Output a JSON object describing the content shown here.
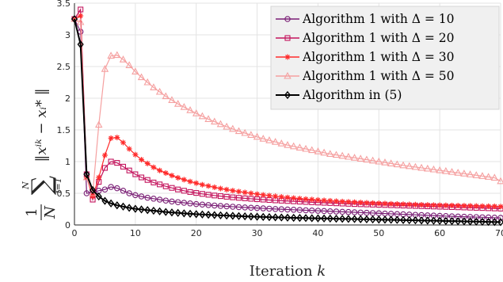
{
  "chart_data": {
    "type": "line",
    "xlabel": "Iteration k",
    "ylabel": "(1/N) Σ_{i=1}^{N} ||x_i^k − x_i^*||",
    "xlim": [
      0,
      70
    ],
    "ylim": [
      0,
      3.5
    ],
    "xticks": [
      0,
      10,
      20,
      30,
      40,
      50,
      60,
      70
    ],
    "yticks": [
      0,
      0.5,
      1,
      1.5,
      2,
      2.5,
      3,
      3.5
    ],
    "grid": true,
    "legend_position": "top-right",
    "series": [
      {
        "name": "Algorithm 1 with Δ = 10",
        "color": "#7a1e75",
        "marker": "circle",
        "values": [
          3.25,
          3.05,
          0.5,
          0.52,
          0.54,
          0.56,
          0.6,
          0.58,
          0.54,
          0.5,
          0.47,
          0.45,
          0.43,
          0.415,
          0.4,
          0.385,
          0.37,
          0.36,
          0.35,
          0.34,
          0.33,
          0.322,
          0.314,
          0.307,
          0.3,
          0.294,
          0.288,
          0.282,
          0.277,
          0.272,
          0.267,
          0.262,
          0.257,
          0.252,
          0.248,
          0.244,
          0.24,
          0.236,
          0.232,
          0.228,
          0.224,
          0.22,
          0.216,
          0.212,
          0.208,
          0.204,
          0.2,
          0.196,
          0.192,
          0.188,
          0.184,
          0.18,
          0.176,
          0.172,
          0.168,
          0.164,
          0.16,
          0.156,
          0.152,
          0.148,
          0.144,
          0.14,
          0.136,
          0.133,
          0.13,
          0.127,
          0.124,
          0.121,
          0.118,
          0.115,
          0.112
        ]
      },
      {
        "name": "Algorithm 1 with Δ = 20",
        "color": "#c4145d",
        "marker": "square",
        "values": [
          3.25,
          3.4,
          0.8,
          0.4,
          0.68,
          0.9,
          1.0,
          0.98,
          0.92,
          0.86,
          0.8,
          0.75,
          0.71,
          0.67,
          0.64,
          0.61,
          0.585,
          0.56,
          0.54,
          0.52,
          0.505,
          0.49,
          0.477,
          0.465,
          0.455,
          0.445,
          0.436,
          0.428,
          0.42,
          0.413,
          0.406,
          0.4,
          0.394,
          0.388,
          0.383,
          0.378,
          0.373,
          0.368,
          0.363,
          0.358,
          0.354,
          0.35,
          0.346,
          0.342,
          0.338,
          0.334,
          0.33,
          0.327,
          0.324,
          0.321,
          0.318,
          0.315,
          0.312,
          0.309,
          0.306,
          0.303,
          0.3,
          0.297,
          0.294,
          0.291,
          0.288,
          0.285,
          0.282,
          0.279,
          0.276,
          0.273,
          0.27,
          0.267,
          0.264,
          0.261,
          0.258
        ]
      },
      {
        "name": "Algorithm 1 with Δ = 30",
        "color": "#ff2a2a",
        "marker": "star",
        "values": [
          3.25,
          3.3,
          0.75,
          0.45,
          0.75,
          1.1,
          1.37,
          1.38,
          1.3,
          1.2,
          1.11,
          1.03,
          0.97,
          0.91,
          0.86,
          0.82,
          0.78,
          0.745,
          0.715,
          0.685,
          0.66,
          0.635,
          0.615,
          0.595,
          0.575,
          0.558,
          0.542,
          0.527,
          0.513,
          0.5,
          0.487,
          0.475,
          0.464,
          0.453,
          0.443,
          0.434,
          0.425,
          0.417,
          0.409,
          0.402,
          0.395,
          0.388,
          0.382,
          0.376,
          0.37,
          0.365,
          0.36,
          0.355,
          0.35,
          0.346,
          0.342,
          0.338,
          0.334,
          0.331,
          0.328,
          0.325,
          0.322,
          0.319,
          0.316,
          0.314,
          0.312,
          0.31,
          0.308,
          0.306,
          0.304,
          0.302,
          0.3,
          0.298,
          0.296,
          0.294,
          0.29
        ]
      },
      {
        "name": "Algorithm 1 with Δ = 50",
        "color": "#f5a0a0",
        "marker": "triangle",
        "values": [
          3.25,
          3.2,
          0.75,
          0.5,
          1.58,
          2.46,
          2.67,
          2.68,
          2.61,
          2.52,
          2.42,
          2.33,
          2.25,
          2.17,
          2.1,
          2.03,
          1.97,
          1.91,
          1.86,
          1.81,
          1.76,
          1.715,
          1.67,
          1.63,
          1.59,
          1.55,
          1.515,
          1.48,
          1.45,
          1.42,
          1.39,
          1.36,
          1.335,
          1.31,
          1.285,
          1.26,
          1.24,
          1.22,
          1.2,
          1.18,
          1.16,
          1.14,
          1.12,
          1.105,
          1.09,
          1.075,
          1.06,
          1.045,
          1.03,
          1.015,
          1.0,
          0.985,
          0.97,
          0.955,
          0.94,
          0.927,
          0.914,
          0.901,
          0.888,
          0.875,
          0.862,
          0.849,
          0.836,
          0.823,
          0.81,
          0.797,
          0.784,
          0.771,
          0.758,
          0.745,
          0.69
        ]
      },
      {
        "name": "Algorithm in (5)",
        "color": "#000000",
        "marker": "diamond",
        "values": [
          3.25,
          2.85,
          0.8,
          0.55,
          0.45,
          0.38,
          0.34,
          0.31,
          0.29,
          0.27,
          0.255,
          0.245,
          0.235,
          0.225,
          0.215,
          0.205,
          0.197,
          0.19,
          0.183,
          0.177,
          0.171,
          0.166,
          0.161,
          0.156,
          0.152,
          0.148,
          0.144,
          0.14,
          0.136,
          0.133,
          0.13,
          0.127,
          0.124,
          0.121,
          0.118,
          0.115,
          0.113,
          0.111,
          0.109,
          0.107,
          0.105,
          0.103,
          0.101,
          0.099,
          0.097,
          0.095,
          0.093,
          0.091,
          0.089,
          0.087,
          0.085,
          0.083,
          0.081,
          0.079,
          0.077,
          0.075,
          0.073,
          0.071,
          0.069,
          0.067,
          0.065,
          0.063,
          0.061,
          0.059,
          0.057,
          0.055,
          0.053,
          0.051,
          0.049,
          0.047,
          0.045
        ]
      }
    ]
  }
}
